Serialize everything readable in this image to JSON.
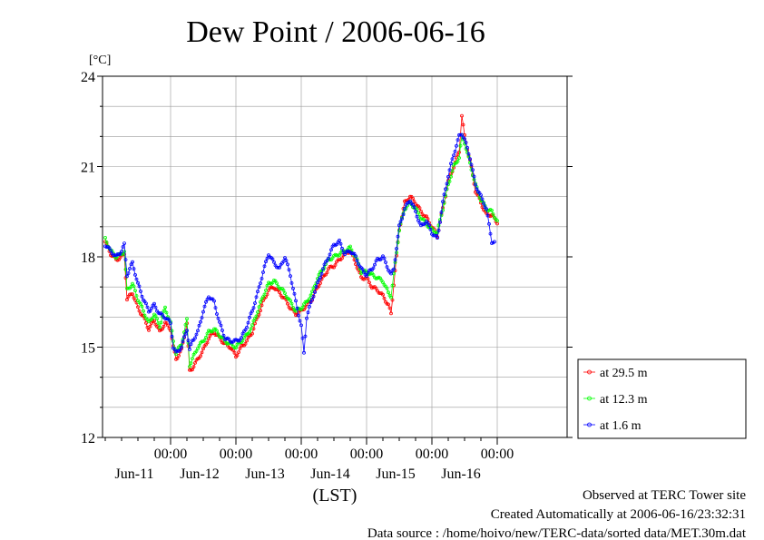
{
  "chart_data": {
    "type": "line",
    "title": "Dew Point / 2006-06-16",
    "unit_label": "[°C]",
    "xlabel": "(LST)",
    "ylim": [
      12,
      24
    ],
    "y_ticks": [
      "12",
      "15",
      "18",
      "21",
      "24"
    ],
    "y_tick_values": [
      12,
      15,
      18,
      21,
      24
    ],
    "x_range_hours": [
      0,
      144
    ],
    "x_major_ticks": [
      {
        "time": "00:00",
        "date": "Jun-11",
        "hour": 24
      },
      {
        "time": "00:00",
        "date": "Jun-12",
        "hour": 48
      },
      {
        "time": "00:00",
        "date": "Jun-13",
        "hour": 72
      },
      {
        "time": "00:00",
        "date": "Jun-14",
        "hour": 96
      },
      {
        "time": "00:00",
        "date": "Jun-15",
        "hour": 120
      },
      {
        "time": "00:00",
        "date": "Jun-16",
        "hour": 144
      }
    ],
    "grid": true,
    "legend_position": "right",
    "series": [
      {
        "name": "at 29.5 m",
        "color": "#ff0000",
        "points": [
          [
            0,
            18.5
          ],
          [
            2,
            18.1
          ],
          [
            4,
            17.9
          ],
          [
            6,
            18.0
          ],
          [
            7,
            18.1
          ],
          [
            8,
            16.6
          ],
          [
            10,
            16.8
          ],
          [
            12,
            16.3
          ],
          [
            14,
            16.0
          ],
          [
            16,
            15.6
          ],
          [
            18,
            15.9
          ],
          [
            20,
            15.5
          ],
          [
            22,
            15.8
          ],
          [
            24,
            15.6
          ],
          [
            25,
            15.0
          ],
          [
            26,
            14.6
          ],
          [
            28,
            14.9
          ],
          [
            30,
            15.8
          ],
          [
            31,
            14.2
          ],
          [
            32,
            14.3
          ],
          [
            34,
            14.6
          ],
          [
            36,
            14.9
          ],
          [
            38,
            15.3
          ],
          [
            40,
            15.5
          ],
          [
            42,
            15.3
          ],
          [
            44,
            15.1
          ],
          [
            46,
            15.0
          ],
          [
            48,
            14.7
          ],
          [
            50,
            15.0
          ],
          [
            52,
            15.2
          ],
          [
            54,
            15.5
          ],
          [
            56,
            16.0
          ],
          [
            58,
            16.5
          ],
          [
            60,
            16.9
          ],
          [
            62,
            17.0
          ],
          [
            64,
            16.8
          ],
          [
            66,
            16.6
          ],
          [
            68,
            16.3
          ],
          [
            70,
            16.1
          ],
          [
            72,
            16.2
          ],
          [
            74,
            16.4
          ],
          [
            76,
            16.6
          ],
          [
            78,
            17.0
          ],
          [
            80,
            17.3
          ],
          [
            82,
            17.6
          ],
          [
            84,
            17.7
          ],
          [
            86,
            17.9
          ],
          [
            88,
            18.1
          ],
          [
            90,
            18.2
          ],
          [
            92,
            17.8
          ],
          [
            94,
            17.3
          ],
          [
            96,
            17.3
          ],
          [
            98,
            17.0
          ],
          [
            100,
            16.9
          ],
          [
            102,
            16.7
          ],
          [
            104,
            16.4
          ],
          [
            105,
            16.1
          ],
          [
            106,
            17.1
          ],
          [
            108,
            18.9
          ],
          [
            110,
            19.8
          ],
          [
            112,
            20.0
          ],
          [
            114,
            19.8
          ],
          [
            116,
            19.5
          ],
          [
            118,
            19.3
          ],
          [
            120,
            19.0
          ],
          [
            122,
            18.7
          ],
          [
            124,
            19.6
          ],
          [
            126,
            20.5
          ],
          [
            128,
            21.0
          ],
          [
            130,
            21.5
          ],
          [
            131,
            22.7
          ],
          [
            132,
            22.0
          ],
          [
            134,
            21.2
          ],
          [
            136,
            20.2
          ],
          [
            138,
            19.8
          ],
          [
            140,
            19.4
          ],
          [
            142,
            19.4
          ],
          [
            144,
            19.1
          ]
        ]
      },
      {
        "name": "at 12.3 m",
        "color": "#00ff00",
        "points": [
          [
            0,
            18.6
          ],
          [
            2,
            18.2
          ],
          [
            4,
            18.0
          ],
          [
            6,
            18.1
          ],
          [
            7,
            18.2
          ],
          [
            8,
            16.9
          ],
          [
            10,
            17.1
          ],
          [
            12,
            16.6
          ],
          [
            14,
            16.2
          ],
          [
            16,
            15.8
          ],
          [
            18,
            16.1
          ],
          [
            20,
            15.7
          ],
          [
            22,
            16.3
          ],
          [
            24,
            15.8
          ],
          [
            25,
            15.2
          ],
          [
            26,
            14.8
          ],
          [
            28,
            15.1
          ],
          [
            30,
            15.9
          ],
          [
            31,
            14.4
          ],
          [
            32,
            14.6
          ],
          [
            34,
            15.0
          ],
          [
            36,
            15.2
          ],
          [
            38,
            15.5
          ],
          [
            40,
            15.6
          ],
          [
            42,
            15.4
          ],
          [
            44,
            15.2
          ],
          [
            46,
            15.1
          ],
          [
            48,
            15.0
          ],
          [
            50,
            15.2
          ],
          [
            52,
            15.4
          ],
          [
            54,
            15.7
          ],
          [
            56,
            16.2
          ],
          [
            58,
            16.7
          ],
          [
            60,
            17.1
          ],
          [
            62,
            17.2
          ],
          [
            64,
            17.0
          ],
          [
            66,
            16.8
          ],
          [
            68,
            16.5
          ],
          [
            70,
            16.2
          ],
          [
            72,
            16.3
          ],
          [
            74,
            16.5
          ],
          [
            76,
            16.8
          ],
          [
            78,
            17.3
          ],
          [
            80,
            17.6
          ],
          [
            82,
            17.9
          ],
          [
            84,
            18.0
          ],
          [
            86,
            18.1
          ],
          [
            88,
            18.2
          ],
          [
            90,
            18.3
          ],
          [
            92,
            18.0
          ],
          [
            94,
            17.5
          ],
          [
            96,
            17.5
          ],
          [
            98,
            17.4
          ],
          [
            100,
            17.3
          ],
          [
            102,
            17.2
          ],
          [
            104,
            16.8
          ],
          [
            105,
            16.7
          ],
          [
            106,
            17.4
          ],
          [
            108,
            18.9
          ],
          [
            110,
            19.6
          ],
          [
            112,
            19.8
          ],
          [
            114,
            19.6
          ],
          [
            116,
            19.3
          ],
          [
            118,
            19.1
          ],
          [
            120,
            18.9
          ],
          [
            122,
            18.8
          ],
          [
            124,
            19.6
          ],
          [
            126,
            20.4
          ],
          [
            128,
            21.0
          ],
          [
            130,
            21.3
          ],
          [
            131,
            22.0
          ],
          [
            132,
            21.8
          ],
          [
            134,
            21.1
          ],
          [
            136,
            20.4
          ],
          [
            138,
            19.9
          ],
          [
            140,
            19.6
          ],
          [
            142,
            19.5
          ],
          [
            144,
            19.2
          ]
        ]
      },
      {
        "name": "at 1.6 m",
        "color": "#0000ff",
        "points": [
          [
            0,
            18.4
          ],
          [
            2,
            18.2
          ],
          [
            4,
            18.0
          ],
          [
            6,
            18.2
          ],
          [
            7,
            18.4
          ],
          [
            8,
            17.4
          ],
          [
            10,
            17.8
          ],
          [
            12,
            17.1
          ],
          [
            14,
            16.6
          ],
          [
            16,
            16.2
          ],
          [
            18,
            16.4
          ],
          [
            20,
            16.1
          ],
          [
            22,
            16.0
          ],
          [
            24,
            15.8
          ],
          [
            25,
            15.0
          ],
          [
            26,
            14.8
          ],
          [
            28,
            15.0
          ],
          [
            30,
            15.6
          ],
          [
            31,
            14.9
          ],
          [
            32,
            15.2
          ],
          [
            34,
            15.5
          ],
          [
            36,
            16.2
          ],
          [
            38,
            16.7
          ],
          [
            40,
            16.5
          ],
          [
            42,
            15.8
          ],
          [
            44,
            15.3
          ],
          [
            46,
            15.2
          ],
          [
            48,
            15.2
          ],
          [
            50,
            15.3
          ],
          [
            52,
            15.7
          ],
          [
            54,
            16.2
          ],
          [
            56,
            16.8
          ],
          [
            58,
            17.5
          ],
          [
            60,
            18.1
          ],
          [
            62,
            17.8
          ],
          [
            64,
            17.6
          ],
          [
            66,
            18.0
          ],
          [
            68,
            17.4
          ],
          [
            70,
            16.5
          ],
          [
            72,
            15.7
          ],
          [
            73,
            14.8
          ],
          [
            74,
            16.0
          ],
          [
            76,
            16.6
          ],
          [
            78,
            17.1
          ],
          [
            80,
            17.6
          ],
          [
            82,
            18.0
          ],
          [
            84,
            18.4
          ],
          [
            86,
            18.5
          ],
          [
            88,
            18.1
          ],
          [
            90,
            18.2
          ],
          [
            92,
            18.0
          ],
          [
            94,
            17.6
          ],
          [
            96,
            17.4
          ],
          [
            98,
            17.6
          ],
          [
            100,
            17.9
          ],
          [
            102,
            18.0
          ],
          [
            104,
            17.6
          ],
          [
            105,
            17.4
          ],
          [
            106,
            17.6
          ],
          [
            108,
            19.0
          ],
          [
            110,
            19.6
          ],
          [
            112,
            19.9
          ],
          [
            114,
            19.5
          ],
          [
            116,
            19.0
          ],
          [
            118,
            19.2
          ],
          [
            120,
            18.8
          ],
          [
            122,
            18.6
          ],
          [
            124,
            19.8
          ],
          [
            126,
            20.7
          ],
          [
            128,
            21.4
          ],
          [
            130,
            22.0
          ],
          [
            131,
            22.1
          ],
          [
            132,
            21.9
          ],
          [
            134,
            21.3
          ],
          [
            136,
            20.4
          ],
          [
            138,
            20.0
          ],
          [
            140,
            19.6
          ],
          [
            142,
            18.5
          ],
          [
            143,
            18.5
          ]
        ]
      }
    ]
  },
  "footer": {
    "line1": "Observed at TERC Tower site",
    "line2": "Created Automatically at 2006-06-16/23:32:31",
    "line3": "Data source : /home/hoivo/new/TERC-data/sorted  data/MET.30m.dat"
  }
}
